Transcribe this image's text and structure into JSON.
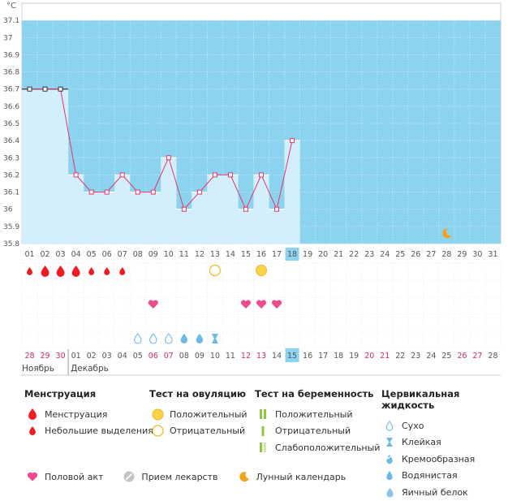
{
  "chart_data": {
    "type": "line",
    "ylabel": "°C",
    "ylim": [
      35.8,
      37.2
    ],
    "y_ticks": [
      "35.8",
      "35.9",
      "36",
      "36.1",
      "36.2",
      "36.3",
      "36.4",
      "36.5",
      "36.6",
      "36.7",
      "36.8",
      "36.9",
      "37",
      "37.1"
    ],
    "cycle_days": [
      "01",
      "02",
      "03",
      "04",
      "05",
      "06",
      "07",
      "08",
      "09",
      "10",
      "11",
      "12",
      "13",
      "14",
      "15",
      "16",
      "17",
      "18",
      "19",
      "20",
      "21",
      "22",
      "23",
      "24",
      "25",
      "26",
      "27",
      "28",
      "29",
      "30",
      "31"
    ],
    "current_day": "18",
    "temperatures": [
      36.7,
      36.7,
      36.7,
      36.2,
      36.1,
      36.1,
      36.2,
      36.1,
      36.1,
      36.3,
      36.0,
      36.1,
      36.2,
      36.2,
      36.0,
      36.2,
      36.0,
      36.4
    ],
    "coverline_first_days": 3,
    "dates": [
      "28",
      "29",
      "30",
      "01",
      "02",
      "03",
      "04",
      "05",
      "06",
      "07",
      "08",
      "09",
      "10",
      "11",
      "12",
      "13",
      "14",
      "15",
      "16",
      "17",
      "18",
      "19",
      "20",
      "21",
      "22",
      "23",
      "24",
      "25",
      "26",
      "27",
      "28"
    ],
    "date_red": [
      0,
      1,
      2,
      8,
      9,
      14,
      15,
      22,
      23,
      28,
      29
    ],
    "today_date_index": 17,
    "months": [
      {
        "label": "Ноябрь",
        "start": 0
      },
      {
        "label": "Декабрь",
        "start": 3
      }
    ],
    "menstruation": [
      {
        "day": 1,
        "kind": "small"
      },
      {
        "day": 2,
        "kind": "large"
      },
      {
        "day": 3,
        "kind": "large"
      },
      {
        "day": 4,
        "kind": "large"
      },
      {
        "day": 5,
        "kind": "small"
      },
      {
        "day": 6,
        "kind": "small"
      },
      {
        "day": 7,
        "kind": "small"
      }
    ],
    "ovulation_tests": [
      {
        "day": 13,
        "result": "negative"
      },
      {
        "day": 16,
        "result": "positive"
      }
    ],
    "intercourse_days": [
      9,
      15,
      16,
      17
    ],
    "cervical_fluid": [
      {
        "day": 8,
        "kind": "dry"
      },
      {
        "day": 9,
        "kind": "dry"
      },
      {
        "day": 10,
        "kind": "dry"
      },
      {
        "day": 11,
        "kind": "watery"
      },
      {
        "day": 12,
        "kind": "watery"
      },
      {
        "day": 13,
        "kind": "sticky"
      }
    ],
    "moon_day": 28,
    "colors": {
      "background": "#8cd3ef",
      "bar": "#d3effc",
      "line": "#e8336b",
      "menstruation": "#ef1c24",
      "heart": "#ef4a8e",
      "ovulation_yellow": "#fbd24a",
      "fluid": "#6cb8e6",
      "moon": "#f2a31c",
      "highlight": "#8cd3ef"
    }
  },
  "legend": {
    "menstruation": {
      "title": "Менструация",
      "items": [
        "Менструация",
        "Небольшие выделения"
      ]
    },
    "ovulation": {
      "title": "Тест на овуляцию",
      "items": [
        "Положительный",
        "Отрицательный"
      ]
    },
    "pregnancy": {
      "title": "Тест на беременность",
      "items": [
        "Положительный",
        "Отрицательный",
        "Слабоположительный"
      ]
    },
    "cervical": {
      "title": "Цервикальная жидкость",
      "items": [
        "Сухо",
        "Клейкая",
        "Кремообразная",
        "Водянистая",
        "Яичный белок"
      ]
    },
    "other": {
      "intercourse": "Половой акт",
      "medicine": "Прием лекарств",
      "moon": "Лунный календарь"
    }
  }
}
